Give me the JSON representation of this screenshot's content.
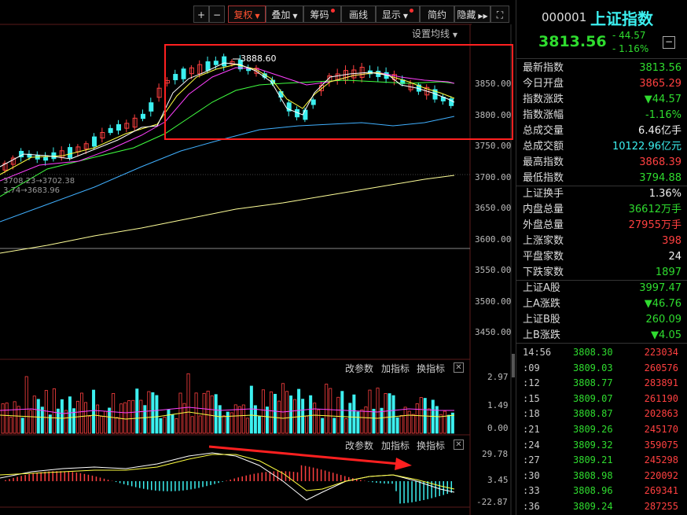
{
  "toolbar": {
    "plus": "+",
    "minus": "−",
    "fuquan": "复权",
    "diejia": "叠加",
    "chouma": "筹码",
    "huaxian": "画线",
    "xianshi": "显示",
    "jianyue": "简约",
    "yincang": "隐藏",
    "expand": "⛶"
  },
  "main": {
    "settings_label": "设置均线",
    "peak_label": "3888.60",
    "ma_label_1": "3708.23→3702.38",
    "ma_label_2": "3.74→3683.96",
    "y_ticks": [
      "3850.00",
      "3800.00",
      "3750.00",
      "3700.00",
      "3650.00",
      "3600.00",
      "3550.00",
      "3500.00",
      "3450.00"
    ]
  },
  "volume_panel": {
    "btn_params": "改参数",
    "btn_add": "加指标",
    "btn_switch": "换指标",
    "btn_close": "✕",
    "y_ticks": [
      "2.97",
      "1.49",
      "0.00"
    ]
  },
  "macd_panel": {
    "btn_params": "改参数",
    "btn_add": "加指标",
    "btn_switch": "换指标",
    "btn_close": "✕",
    "y_ticks": [
      "29.78",
      "3.45",
      "-22.87"
    ]
  },
  "quote": {
    "code": "000001",
    "name": "上证指数",
    "price": "3813.56",
    "change": "- 44.57",
    "change_pct": "- 1.16%",
    "rows": [
      {
        "k": "最新指数",
        "v": "3813.56",
        "c": "green"
      },
      {
        "k": "今日开盘",
        "v": "3865.29",
        "c": "red"
      },
      {
        "k": "指数涨跌",
        "v": "▼44.57",
        "c": "green"
      },
      {
        "k": "指数涨幅",
        "v": "-1.16%",
        "c": "green"
      },
      {
        "k": "总成交量",
        "v": "6.46亿手",
        "c": "white"
      },
      {
        "k": "总成交额",
        "v": "10122.96亿元",
        "c": "cyan"
      },
      {
        "k": "最高指数",
        "v": "3868.39",
        "c": "red"
      },
      {
        "k": "最低指数",
        "v": "3794.88",
        "c": "green"
      },
      {
        "k": "上证换手",
        "v": "1.36%",
        "c": "white"
      },
      {
        "k": "内盘总量",
        "v": "36612万手",
        "c": "green"
      },
      {
        "k": "外盘总量",
        "v": "27955万手",
        "c": "red"
      },
      {
        "k": "上涨家数",
        "v": "398",
        "c": "red"
      },
      {
        "k": "平盘家数",
        "v": "24",
        "c": "white"
      },
      {
        "k": "下跌家数",
        "v": "1897",
        "c": "green"
      },
      {
        "k": "上证A股",
        "v": "3997.47",
        "c": "green"
      },
      {
        "k": "上A涨跌",
        "v": "▼46.76",
        "c": "green"
      },
      {
        "k": "上证B股",
        "v": "260.09",
        "c": "green"
      },
      {
        "k": "上B涨跌",
        "v": "▼4.05",
        "c": "green"
      }
    ],
    "ticks": [
      {
        "t": "14:56",
        "p": "3808.30",
        "v": "223034"
      },
      {
        "t": ":09",
        "p": "3809.03",
        "v": "260576"
      },
      {
        "t": ":12",
        "p": "3808.77",
        "v": "283891"
      },
      {
        "t": ":15",
        "p": "3809.07",
        "v": "261190"
      },
      {
        "t": ":18",
        "p": "3808.87",
        "v": "202863"
      },
      {
        "t": ":21",
        "p": "3809.26",
        "v": "245170"
      },
      {
        "t": ":24",
        "p": "3809.32",
        "v": "359075"
      },
      {
        "t": ":27",
        "p": "3809.21",
        "v": "245298"
      },
      {
        "t": ":30",
        "p": "3808.98",
        "v": "220092"
      },
      {
        "t": ":33",
        "p": "3808.96",
        "v": "269341"
      },
      {
        "t": ":36",
        "p": "3809.24",
        "v": "287255"
      }
    ]
  },
  "colors": {
    "up": "#ff4040",
    "down": "#3cf0f0",
    "ma5": "#ffffff",
    "ma10": "#ffff40",
    "ma20": "#ff40ff",
    "ma30": "#40ff40",
    "ma60": "#40b0ff",
    "ma120": "#ffff99"
  }
}
